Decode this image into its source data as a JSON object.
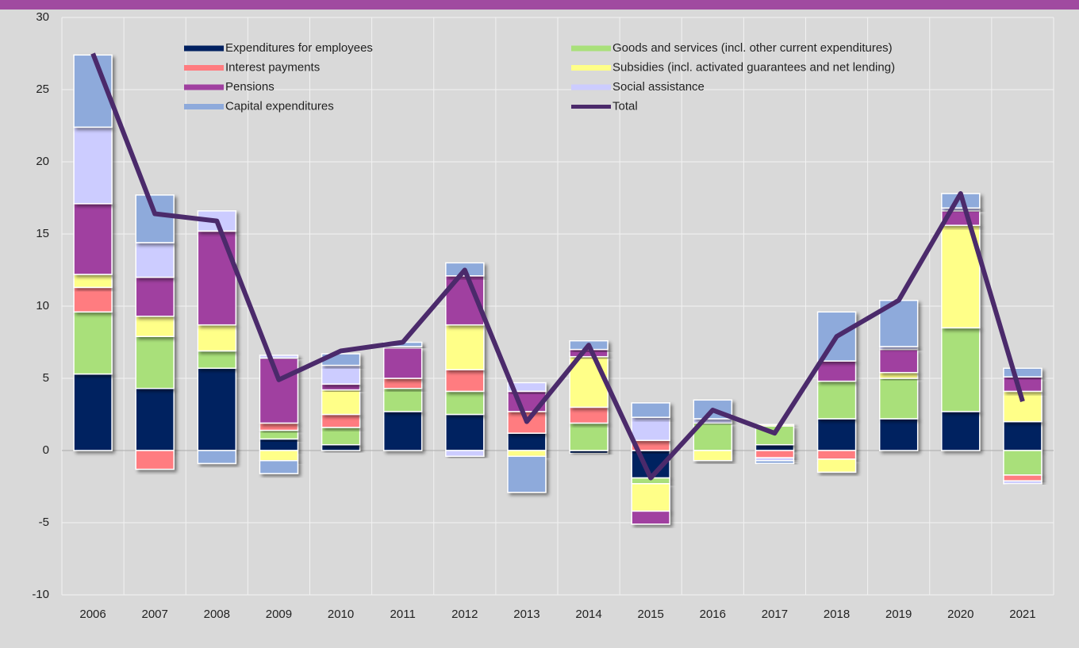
{
  "chart_data": {
    "type": "bar",
    "stacked": true,
    "categories": [
      "2006",
      "2007",
      "2008",
      "2009",
      "2010",
      "2011",
      "2012",
      "2013",
      "2014",
      "2015",
      "2016",
      "2017",
      "2018",
      "2019",
      "2020",
      "2021"
    ],
    "series": [
      {
        "name": "Expenditures for employees",
        "color": "#002060",
        "values": [
          5.3,
          4.3,
          5.7,
          0.8,
          0.4,
          2.7,
          2.5,
          1.2,
          -0.2,
          -1.9,
          0,
          0.4,
          2.2,
          2.2,
          2.7,
          2.0
        ]
      },
      {
        "name": "Goods and services (incl. other current expenditures)",
        "color": "#a9e07a",
        "values": [
          4.3,
          3.6,
          1.2,
          0.6,
          1.2,
          1.6,
          1.6,
          0,
          1.9,
          -0.4,
          1.9,
          1.3,
          2.6,
          2.8,
          5.8,
          -1.7
        ]
      },
      {
        "name": "Interest payments",
        "color": "#ff7c80",
        "values": [
          1.7,
          -1.3,
          0,
          0.5,
          0.9,
          0.7,
          1.5,
          1.5,
          1.1,
          0.7,
          0,
          -0.5,
          -0.6,
          0,
          0,
          -0.4
        ]
      },
      {
        "name": "Subsidies (incl. activated guarantees and net lending)",
        "color": "#ffff88",
        "values": [
          0.9,
          1.4,
          1.8,
          -0.7,
          1.7,
          0,
          3.1,
          -0.4,
          3.5,
          -1.9,
          -0.7,
          0.1,
          -0.9,
          0.4,
          7.1,
          2.1
        ]
      },
      {
        "name": "Pensions",
        "color": "#a040a0",
        "values": [
          4.9,
          2.7,
          6.5,
          4.5,
          0.4,
          2.1,
          3.4,
          1.4,
          0.5,
          -0.9,
          0,
          0,
          1.4,
          1.6,
          1.0,
          1.0
        ]
      },
      {
        "name": "Social assistance",
        "color": "#ccccff",
        "values": [
          5.3,
          2.4,
          1.4,
          0.2,
          1.3,
          0.1,
          -0.4,
          0.6,
          0,
          1.6,
          0.3,
          -0.2,
          0,
          0.2,
          0.2,
          -0.2
        ]
      },
      {
        "name": "Capital expenditures",
        "color": "#8eaadb",
        "values": [
          5.0,
          3.3,
          -0.9,
          -0.9,
          0.8,
          0.3,
          0.9,
          -2.5,
          0.6,
          1.0,
          1.3,
          -0.2,
          3.4,
          3.2,
          1.0,
          0.6
        ]
      },
      {
        "name": "Total",
        "color": "#4b2a6b",
        "type": "line",
        "values": [
          27.5,
          16.4,
          15.9,
          4.9,
          6.9,
          7.5,
          12.5,
          2.0,
          7.3,
          -1.9,
          2.8,
          1.2,
          7.9,
          10.4,
          17.8,
          3.4
        ]
      }
    ],
    "ylim": [
      -10,
      30
    ],
    "yticks": [
      -10,
      -5,
      0,
      5,
      10,
      15,
      20,
      25,
      30
    ],
    "grid": true,
    "legend": "top"
  }
}
